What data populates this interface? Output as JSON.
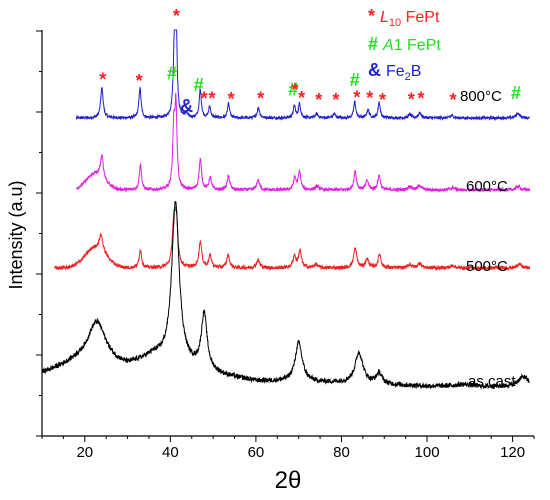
{
  "chart_data": {
    "type": "line",
    "title": "",
    "xlabel": "2θ",
    "ylabel": "Intensity (a.u)",
    "xlim": [
      10,
      125
    ],
    "xticks": [
      20,
      40,
      60,
      80,
      100,
      120
    ],
    "grid": false,
    "legend": {
      "placement": "top-right",
      "entries": [
        {
          "symbol": "*",
          "prefix": "",
          "italic": "L",
          "sub": "1",
          "subtail": "0",
          "suffix": " FePt",
          "color": "#ff2020"
        },
        {
          "symbol": "#",
          "prefix": "",
          "italic": "A",
          "sub": "",
          "subtail": "",
          "suffix": "1 FePt",
          "color": "#22dd22"
        },
        {
          "symbol": "&",
          "prefix": "Fe",
          "italic": "",
          "sub": "2",
          "subtail": "",
          "suffix": "B",
          "color": "#1f1fd0"
        }
      ]
    },
    "series": [
      {
        "name": "800°C",
        "color": "#1f1fd0",
        "x_range": [
          18,
          124
        ],
        "baseline": 0.0,
        "noise": 0.35,
        "peaks": [
          [
            24.0,
            7.5,
            0.35
          ],
          [
            32.9,
            7.5,
            0.3
          ],
          [
            40.9,
            13.0,
            0.3
          ],
          [
            41.3,
            30.0,
            0.25
          ],
          [
            43.7,
            1.0,
            0.4
          ],
          [
            47.0,
            7.0,
            0.3
          ],
          [
            49.2,
            2.8,
            0.3
          ],
          [
            53.6,
            3.5,
            0.3
          ],
          [
            60.6,
            2.5,
            0.35
          ],
          [
            69.0,
            3.0,
            0.3
          ],
          [
            70.2,
            3.5,
            0.3
          ],
          [
            74.2,
            1.0,
            0.4
          ],
          [
            78.3,
            1.0,
            0.4
          ],
          [
            83.1,
            4.0,
            0.3
          ],
          [
            86.2,
            2.0,
            0.35
          ],
          [
            88.8,
            4.0,
            0.3
          ],
          [
            96.0,
            0.9,
            0.4
          ],
          [
            98.3,
            1.3,
            0.4
          ],
          [
            105.8,
            0.6,
            0.5
          ],
          [
            121.2,
            1.2,
            0.5
          ]
        ],
        "markers": [
          [
            24.2,
            "*"
          ],
          [
            32.7,
            "*"
          ],
          [
            40.4,
            "#"
          ],
          [
            41.4,
            "*"
          ],
          [
            46.6,
            "#"
          ],
          [
            47.9,
            "*"
          ],
          [
            43.8,
            "&"
          ],
          [
            49.7,
            "*"
          ],
          [
            54.2,
            "*"
          ],
          [
            61.1,
            "*"
          ],
          [
            68.7,
            "#"
          ],
          [
            69.1,
            "*"
          ],
          [
            70.7,
            "*"
          ],
          [
            74.7,
            "*"
          ],
          [
            78.7,
            "*"
          ],
          [
            83.1,
            "#"
          ],
          [
            83.6,
            "*"
          ],
          [
            86.6,
            "*"
          ],
          [
            89.6,
            "*"
          ],
          [
            96.3,
            "*"
          ],
          [
            98.6,
            "*"
          ],
          [
            106.1,
            "*"
          ],
          [
            120.8,
            "#"
          ]
        ]
      },
      {
        "name": "600°C",
        "color": "#e020e0",
        "x_range": [
          18,
          124
        ],
        "baseline": 0.0,
        "noise": 0.4,
        "hump": [
          22.5,
          4.0,
          3.0
        ],
        "peaks": [
          [
            24.0,
            5.5,
            0.4
          ],
          [
            33.0,
            6.5,
            0.3
          ],
          [
            40.8,
            14.0,
            0.3
          ],
          [
            41.3,
            20.0,
            0.3
          ],
          [
            47.0,
            7.5,
            0.35
          ],
          [
            49.3,
            3.0,
            0.35
          ],
          [
            53.6,
            3.5,
            0.35
          ],
          [
            60.5,
            2.5,
            0.4
          ],
          [
            69.1,
            3.0,
            0.35
          ],
          [
            70.2,
            4.5,
            0.35
          ],
          [
            74.3,
            0.9,
            0.5
          ],
          [
            83.2,
            4.8,
            0.35
          ],
          [
            86.0,
            2.3,
            0.4
          ],
          [
            88.8,
            3.7,
            0.35
          ],
          [
            96.0,
            0.9,
            0.5
          ],
          [
            98.3,
            1.1,
            0.5
          ],
          [
            106.0,
            0.6,
            0.6
          ],
          [
            121.3,
            0.9,
            0.6
          ]
        ]
      },
      {
        "name": "500°C",
        "color": "#ee2020",
        "x_range": [
          13,
          124
        ],
        "baseline": 0.0,
        "noise": 0.45,
        "hump": [
          22.5,
          5.0,
          3.5
        ],
        "peaks": [
          [
            23.8,
            4.0,
            0.5
          ],
          [
            33.0,
            4.5,
            0.35
          ],
          [
            40.8,
            10.0,
            0.4
          ],
          [
            41.4,
            12.0,
            0.4
          ],
          [
            47.0,
            6.5,
            0.4
          ],
          [
            49.3,
            3.0,
            0.4
          ],
          [
            53.5,
            3.2,
            0.4
          ],
          [
            60.5,
            2.0,
            0.45
          ],
          [
            69.0,
            3.0,
            0.4
          ],
          [
            70.3,
            4.3,
            0.4
          ],
          [
            74.0,
            0.9,
            0.5
          ],
          [
            83.2,
            4.8,
            0.45
          ],
          [
            86.0,
            2.2,
            0.45
          ],
          [
            88.9,
            3.5,
            0.4
          ],
          [
            96.0,
            0.9,
            0.5
          ],
          [
            98.3,
            1.2,
            0.5
          ],
          [
            106.0,
            0.6,
            0.6
          ],
          [
            121.5,
            1.0,
            0.6
          ]
        ]
      },
      {
        "name": "as cast",
        "color": "#000000",
        "x_range": [
          10,
          124
        ],
        "baseline": 0.0,
        "noise": 0.6,
        "broad": [
          [
            22.8,
            10.5,
            2.6
          ],
          [
            41.2,
            39.0,
            1.05
          ],
          [
            47.9,
            13.5,
            0.8
          ],
          [
            70.0,
            9.5,
            1.0
          ],
          [
            84.1,
            7.5,
            1.1
          ],
          [
            88.8,
            2.6,
            0.8
          ],
          [
            108.5,
            0.5,
            2.5
          ],
          [
            122.5,
            2.5,
            1.5
          ]
        ],
        "background": [
          [
            10,
            3.5
          ],
          [
            18,
            6.0
          ],
          [
            30,
            5.0
          ],
          [
            36,
            7.5
          ],
          [
            52,
            3.0
          ],
          [
            60,
            1.6
          ],
          [
            80,
            1.2
          ],
          [
            100,
            0.4
          ],
          [
            124,
            0.2
          ]
        ]
      }
    ]
  }
}
